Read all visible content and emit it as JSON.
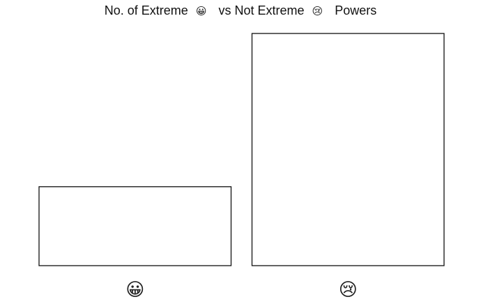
{
  "chart_data": {
    "type": "bar",
    "title_parts": {
      "before": "No. of Extreme",
      "emoji_a": "😀",
      "middle": "vs Not Extreme",
      "emoji_b": "😢",
      "after": "Powers"
    },
    "categories": [
      "😀",
      "😢"
    ],
    "category_icons": [
      "grinning-face-icon",
      "crying-face-icon"
    ],
    "values": [
      17,
      50
    ],
    "ylim": [
      0,
      50
    ],
    "xlabel": "",
    "ylabel": "",
    "grid": false,
    "legend": "none",
    "bar_fill": "#ffffff",
    "bar_stroke": "#111111"
  }
}
